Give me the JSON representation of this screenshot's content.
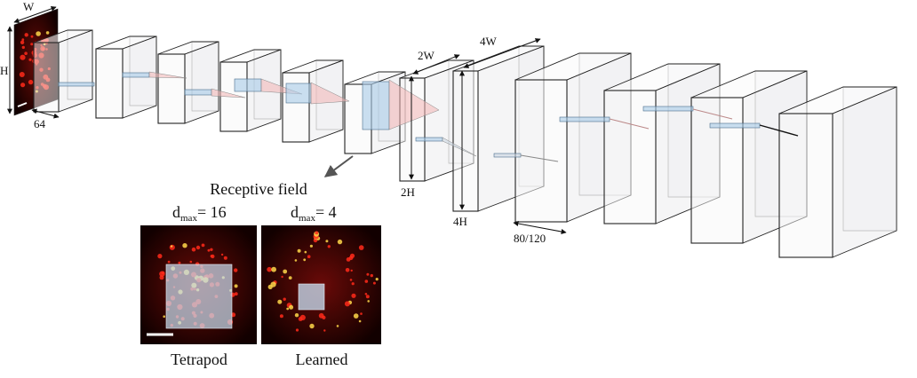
{
  "dims": {
    "w": "W",
    "h": "H",
    "depth": "64",
    "two_w": "2W",
    "two_h": "2H",
    "four_w": "4W",
    "four_h": "4H",
    "out_depth": "80/120"
  },
  "receptive_field": {
    "title": "Receptive field",
    "panels": [
      {
        "d_symbol": "d",
        "d_sub": "max",
        "d_value": "= 16",
        "caption": "Tetrapod"
      },
      {
        "d_symbol": "d",
        "d_sub": "max",
        "d_value": "= 4",
        "caption": "Learned"
      }
    ]
  },
  "colors": {
    "block_stroke": "#222222",
    "block_fill": "#f2f3f5",
    "kernel_blue": "#a9cbe8",
    "kernel_red": "#f3b5b5",
    "microscopy_bg": "#1a0000",
    "spot_red": "#ff2a1a",
    "spot_yellow": "#ffd84a"
  }
}
